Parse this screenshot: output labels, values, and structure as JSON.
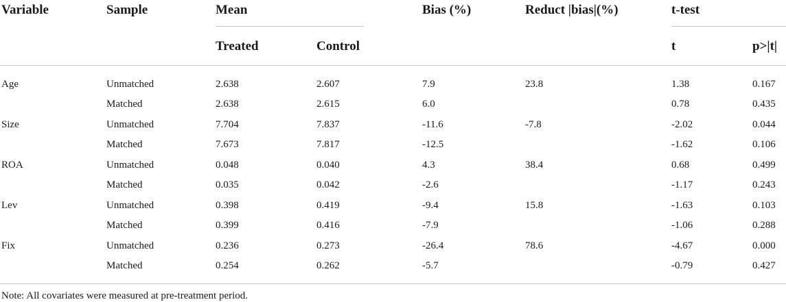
{
  "headers": {
    "variable": "Variable",
    "sample": "Sample",
    "mean": "Mean",
    "bias": "Bias (%)",
    "reduct": "Reduct |bias|(%)",
    "ttest": "t-test",
    "treated": "Treated",
    "control": "Control",
    "t": "t",
    "p": "p>|t|"
  },
  "rows": [
    {
      "variable": "Age",
      "sample": "Unmatched",
      "treated": "2.638",
      "control": "2.607",
      "bias": "7.9",
      "reduct": "23.8",
      "t": "1.38",
      "p": "0.167"
    },
    {
      "variable": "",
      "sample": "Matched",
      "treated": "2.638",
      "control": "2.615",
      "bias": "6.0",
      "reduct": "",
      "t": "0.78",
      "p": "0.435"
    },
    {
      "variable": "Size",
      "sample": "Unmatched",
      "treated": "7.704",
      "control": "7.837",
      "bias": "-11.6",
      "reduct": "-7.8",
      "t": "-2.02",
      "p": "0.044"
    },
    {
      "variable": "",
      "sample": "Matched",
      "treated": "7.673",
      "control": "7.817",
      "bias": "-12.5",
      "reduct": "",
      "t": "-1.62",
      "p": "0.106"
    },
    {
      "variable": "ROA",
      "sample": "Unmatched",
      "treated": "0.048",
      "control": "0.040",
      "bias": "4.3",
      "reduct": "38.4",
      "t": "0.68",
      "p": "0.499"
    },
    {
      "variable": "",
      "sample": "Matched",
      "treated": "0.035",
      "control": "0.042",
      "bias": "-2.6",
      "reduct": "",
      "t": "-1.17",
      "p": "0.243"
    },
    {
      "variable": "Lev",
      "sample": "Unmatched",
      "treated": "0.398",
      "control": "0.419",
      "bias": "-9.4",
      "reduct": "15.8",
      "t": "-1.63",
      "p": "0.103"
    },
    {
      "variable": "",
      "sample": "Matched",
      "treated": "0.399",
      "control": "0.416",
      "bias": "-7.9",
      "reduct": "",
      "t": "-1.06",
      "p": "0.288"
    },
    {
      "variable": "Fix",
      "sample": "Unmatched",
      "treated": "0.236",
      "control": "0.273",
      "bias": "-26.4",
      "reduct": "78.6",
      "t": "-4.67",
      "p": "0.000"
    },
    {
      "variable": "",
      "sample": "Matched",
      "treated": "0.254",
      "control": "0.262",
      "bias": "-5.7",
      "reduct": "",
      "t": "-0.79",
      "p": "0.427"
    }
  ],
  "note": "Note: All covariates were measured at pre-treatment period."
}
